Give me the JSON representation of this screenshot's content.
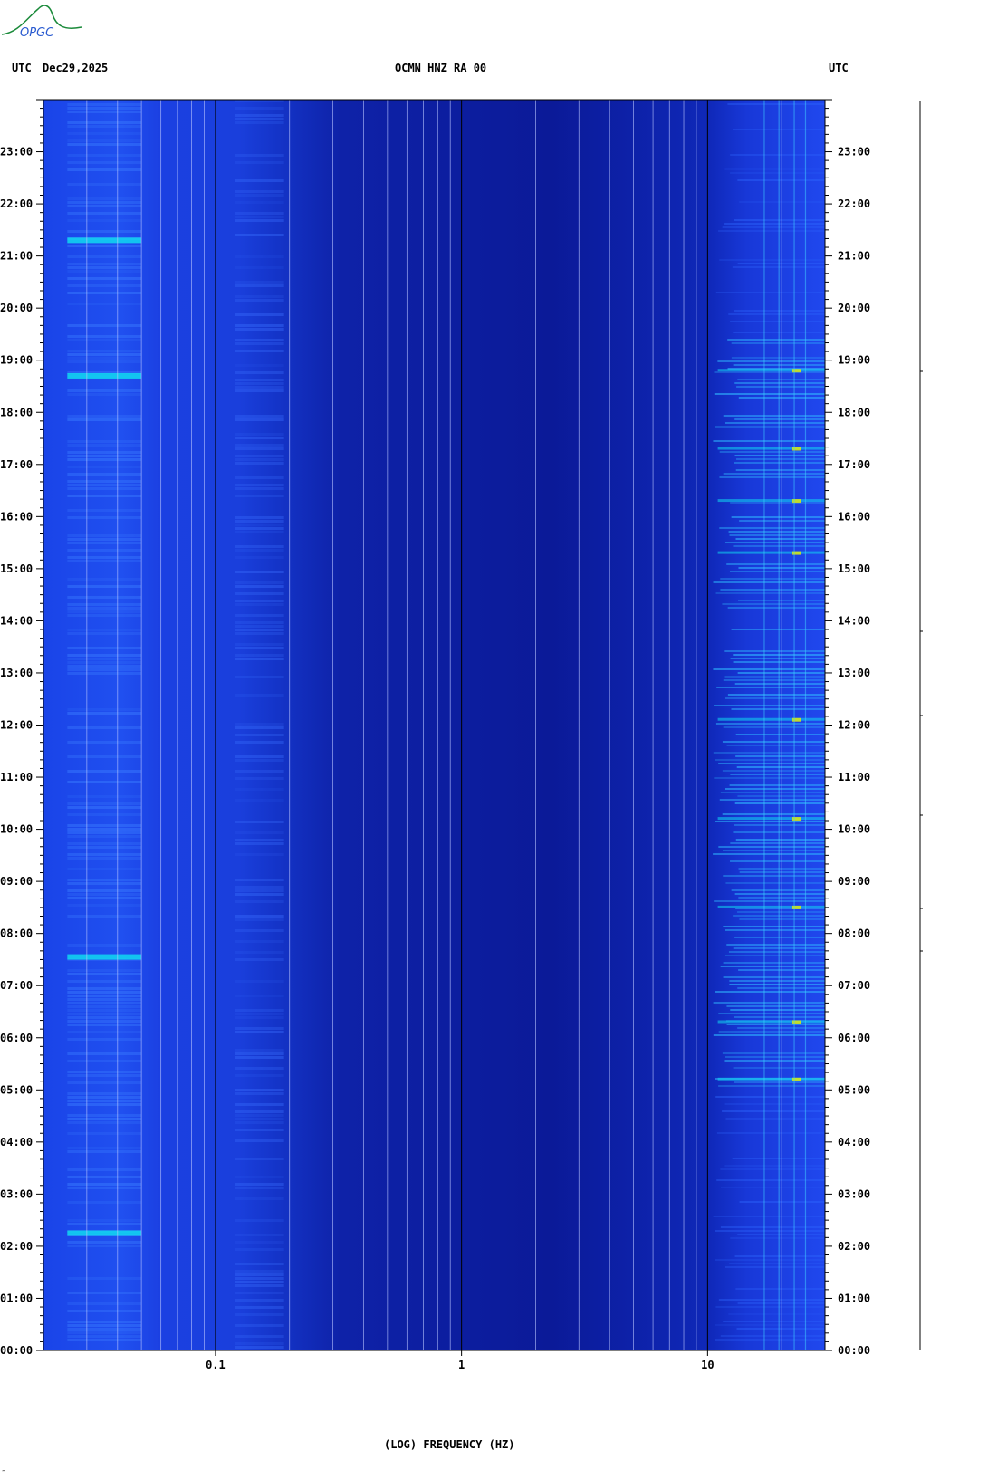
{
  "logo": {
    "text": "OPGC",
    "name": "opgc-logo"
  },
  "header": {
    "left_tz": "UTC",
    "date": "Dec29,2025",
    "title": "OCMN HNZ RA 00",
    "right_tz": "UTC"
  },
  "corner_mark": "‴",
  "chart_data": {
    "type": "heatmap",
    "title": "OCMN HNZ RA 00",
    "xlabel": "(LOG) FREQUENCY (HZ)",
    "ylabel": "",
    "x_scale": "log",
    "x_range_hz": [
      0.02,
      30
    ],
    "x_ticks": [
      {
        "value": 0.1,
        "label": "0.1"
      },
      {
        "value": 1,
        "label": "1"
      },
      {
        "value": 10,
        "label": "10"
      }
    ],
    "y_range_hours": [
      0,
      24
    ],
    "y_ticks": [
      "00:00",
      "01:00",
      "02:00",
      "03:00",
      "04:00",
      "05:00",
      "06:00",
      "07:00",
      "08:00",
      "09:00",
      "10:00",
      "11:00",
      "12:00",
      "13:00",
      "14:00",
      "15:00",
      "16:00",
      "17:00",
      "18:00",
      "19:00",
      "20:00",
      "21:00",
      "22:00",
      "23:00"
    ],
    "grid_frequencies_hz": [
      0.03,
      0.04,
      0.05,
      0.06,
      0.07,
      0.08,
      0.09,
      0.2,
      0.3,
      0.4,
      0.5,
      0.6,
      0.7,
      0.8,
      0.9,
      2,
      3,
      4,
      5,
      6,
      7,
      8,
      9,
      20
    ],
    "bright_events_hours": [
      2.25,
      7.55,
      18.7,
      21.3
    ],
    "high_freq_activity_hours": [
      5.2,
      6.3,
      8.5,
      10.2,
      12.1,
      15.3,
      16.3,
      17.3,
      18.8
    ],
    "colors": {
      "background_low": "#0a14a0",
      "mid": "#1a3fe8",
      "high": "#10d8f0",
      "peak": "#e8f000"
    }
  }
}
